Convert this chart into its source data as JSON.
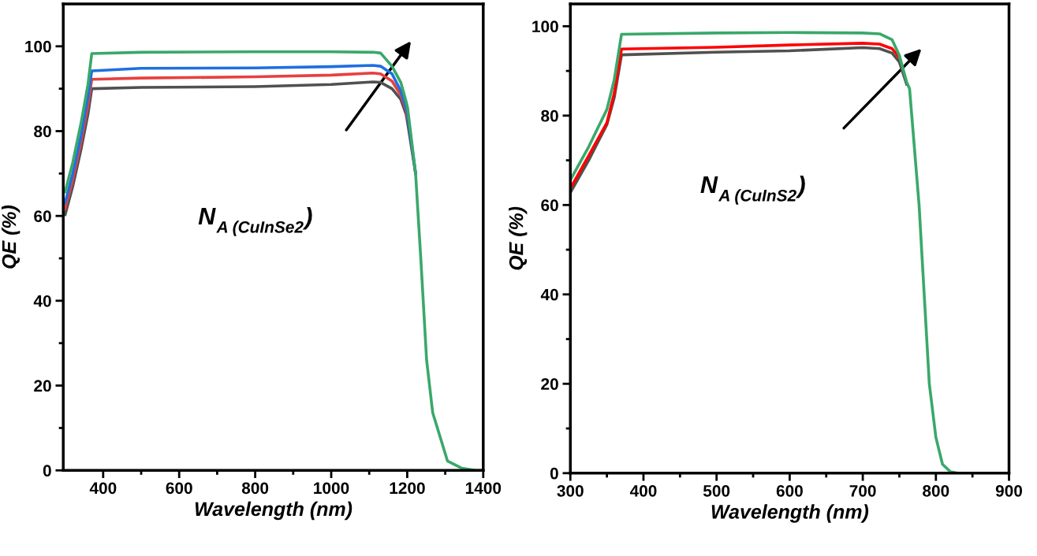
{
  "chart_data": [
    {
      "type": "line",
      "xlabel": "Wavelength (nm)",
      "ylabel": "QE (%)",
      "annotations": [
        "N$_{A (CuInSe2}$)"
      ],
      "xlim": [
        295,
        1400
      ],
      "xticks": [
        400,
        600,
        800,
        1000,
        1200,
        1400
      ],
      "ylim": [
        0,
        110
      ],
      "yticks": [
        0,
        20,
        40,
        60,
        80,
        100
      ],
      "grid": false,
      "legend": false,
      "series": [
        {
          "color": "#505050",
          "x": [
            300,
            320,
            342,
            360,
            370,
            500,
            800,
            1000,
            1110,
            1130,
            1160,
            1183,
            1197,
            1201,
            1222
          ],
          "values": [
            60.3,
            67,
            75.8,
            84,
            90,
            90.3,
            90.5,
            91,
            91.6,
            91.5,
            90,
            87.5,
            84,
            82,
            70
          ]
        },
        {
          "color": "#e84040",
          "x": [
            300,
            320,
            342,
            360,
            370,
            500,
            800,
            1000,
            1110,
            1130,
            1160,
            1183,
            1197,
            1201
          ],
          "values": [
            61.8,
            68.5,
            77.5,
            86,
            92.2,
            92.5,
            92.8,
            93.2,
            93.7,
            93.5,
            91.8,
            88.5,
            85,
            83
          ]
        },
        {
          "color": "#1f6fe0",
          "x": [
            300,
            320,
            342,
            360,
            370,
            500,
            800,
            1000,
            1110,
            1130,
            1160,
            1183,
            1197,
            1201,
            1222
          ],
          "values": [
            63.1,
            70,
            79,
            88,
            94.2,
            94.8,
            94.9,
            95.2,
            95.5,
            95.3,
            93.5,
            89.5,
            85.5,
            84,
            70
          ]
        },
        {
          "color": "#3aa86a",
          "x": [
            300,
            320,
            342,
            360,
            370,
            500,
            800,
            1000,
            1110,
            1130,
            1160,
            1183,
            1197,
            1201,
            1222,
            1236,
            1251,
            1267,
            1306,
            1344,
            1379,
            1400
          ],
          "values": [
            65.7,
            72.6,
            82,
            91,
            98.3,
            98.6,
            98.7,
            98.7,
            98.6,
            98.4,
            95.3,
            91.5,
            87,
            85.5,
            70,
            49.5,
            26,
            13.6,
            2.2,
            0.5,
            0,
            0
          ]
        }
      ]
    },
    {
      "type": "line",
      "xlabel": "Wavelength (nm)",
      "ylabel": "QE (%)",
      "annotations": [
        "N$_{A (CuInS2}$)"
      ],
      "xlim": [
        300,
        900
      ],
      "xticks": [
        300,
        400,
        500,
        600,
        700,
        800,
        900
      ],
      "ylim": [
        0,
        105
      ],
      "yticks": [
        0,
        20,
        40,
        60,
        80,
        100
      ],
      "grid": false,
      "legend": false,
      "series": [
        {
          "color": "#505050",
          "x": [
            300,
            325,
            350,
            360,
            370,
            500,
            600,
            700,
            723,
            740,
            750,
            760
          ],
          "values": [
            62.8,
            70,
            78,
            84,
            93.6,
            94.2,
            94.5,
            95.2,
            95,
            94,
            92,
            87
          ]
        },
        {
          "color": "#ff0000",
          "x": [
            300,
            325,
            350,
            360,
            370,
            500,
            600,
            700,
            723,
            740,
            750
          ],
          "values": [
            63.7,
            71,
            78.4,
            85,
            94.9,
            95.3,
            95.8,
            96.2,
            96,
            95,
            93
          ]
        },
        {
          "color": "#3aa86a",
          "x": [
            300,
            325,
            350,
            360,
            370,
            500,
            600,
            700,
            723,
            740,
            750,
            760,
            764,
            777,
            784,
            791,
            800,
            809,
            820,
            830,
            900
          ],
          "values": [
            65.6,
            73,
            81.4,
            88,
            98.2,
            98.5,
            98.6,
            98.5,
            98.3,
            97,
            93.5,
            87.5,
            86,
            60,
            40,
            20,
            8,
            2,
            0.3,
            0,
            0
          ]
        }
      ]
    }
  ]
}
